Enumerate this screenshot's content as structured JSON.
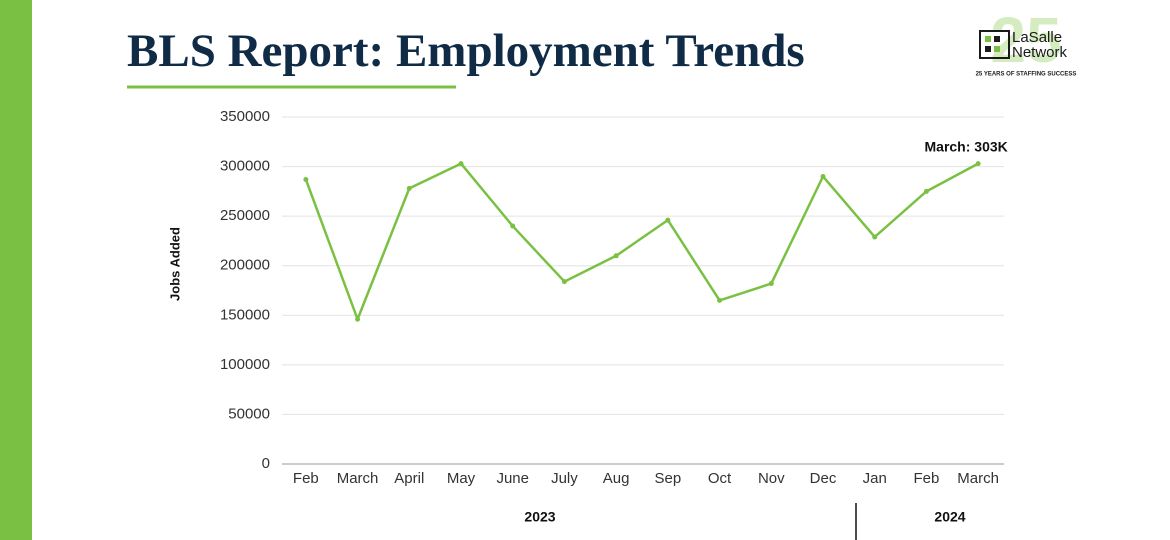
{
  "logo": {
    "badge": "25",
    "name_line1": "LaSalle",
    "name_line2": "Network",
    "tagline": "25 YEARS OF STAFFING SUCCESS"
  },
  "chart_data": {
    "type": "line",
    "title": "BLS Report: Employment Trends",
    "y_label": "Jobs Added",
    "categories": [
      "Feb",
      "March",
      "April",
      "May",
      "June",
      "July",
      "Aug",
      "Sep",
      "Oct",
      "Nov",
      "Dec",
      "Jan",
      "Feb",
      "March"
    ],
    "year_labels": [
      "2023",
      "2024"
    ],
    "series": [
      {
        "name": "Jobs Added",
        "color": "#7ac143",
        "values": [
          287000,
          146000,
          278000,
          303000,
          240000,
          184000,
          210000,
          246000,
          165000,
          182000,
          290000,
          229000,
          275000,
          303000
        ]
      }
    ],
    "annotation": "March: 303K",
    "ylim": [
      0,
      350000
    ],
    "yticks": [
      0,
      50000,
      100000,
      150000,
      200000,
      250000,
      300000,
      350000
    ],
    "grid": true
  }
}
